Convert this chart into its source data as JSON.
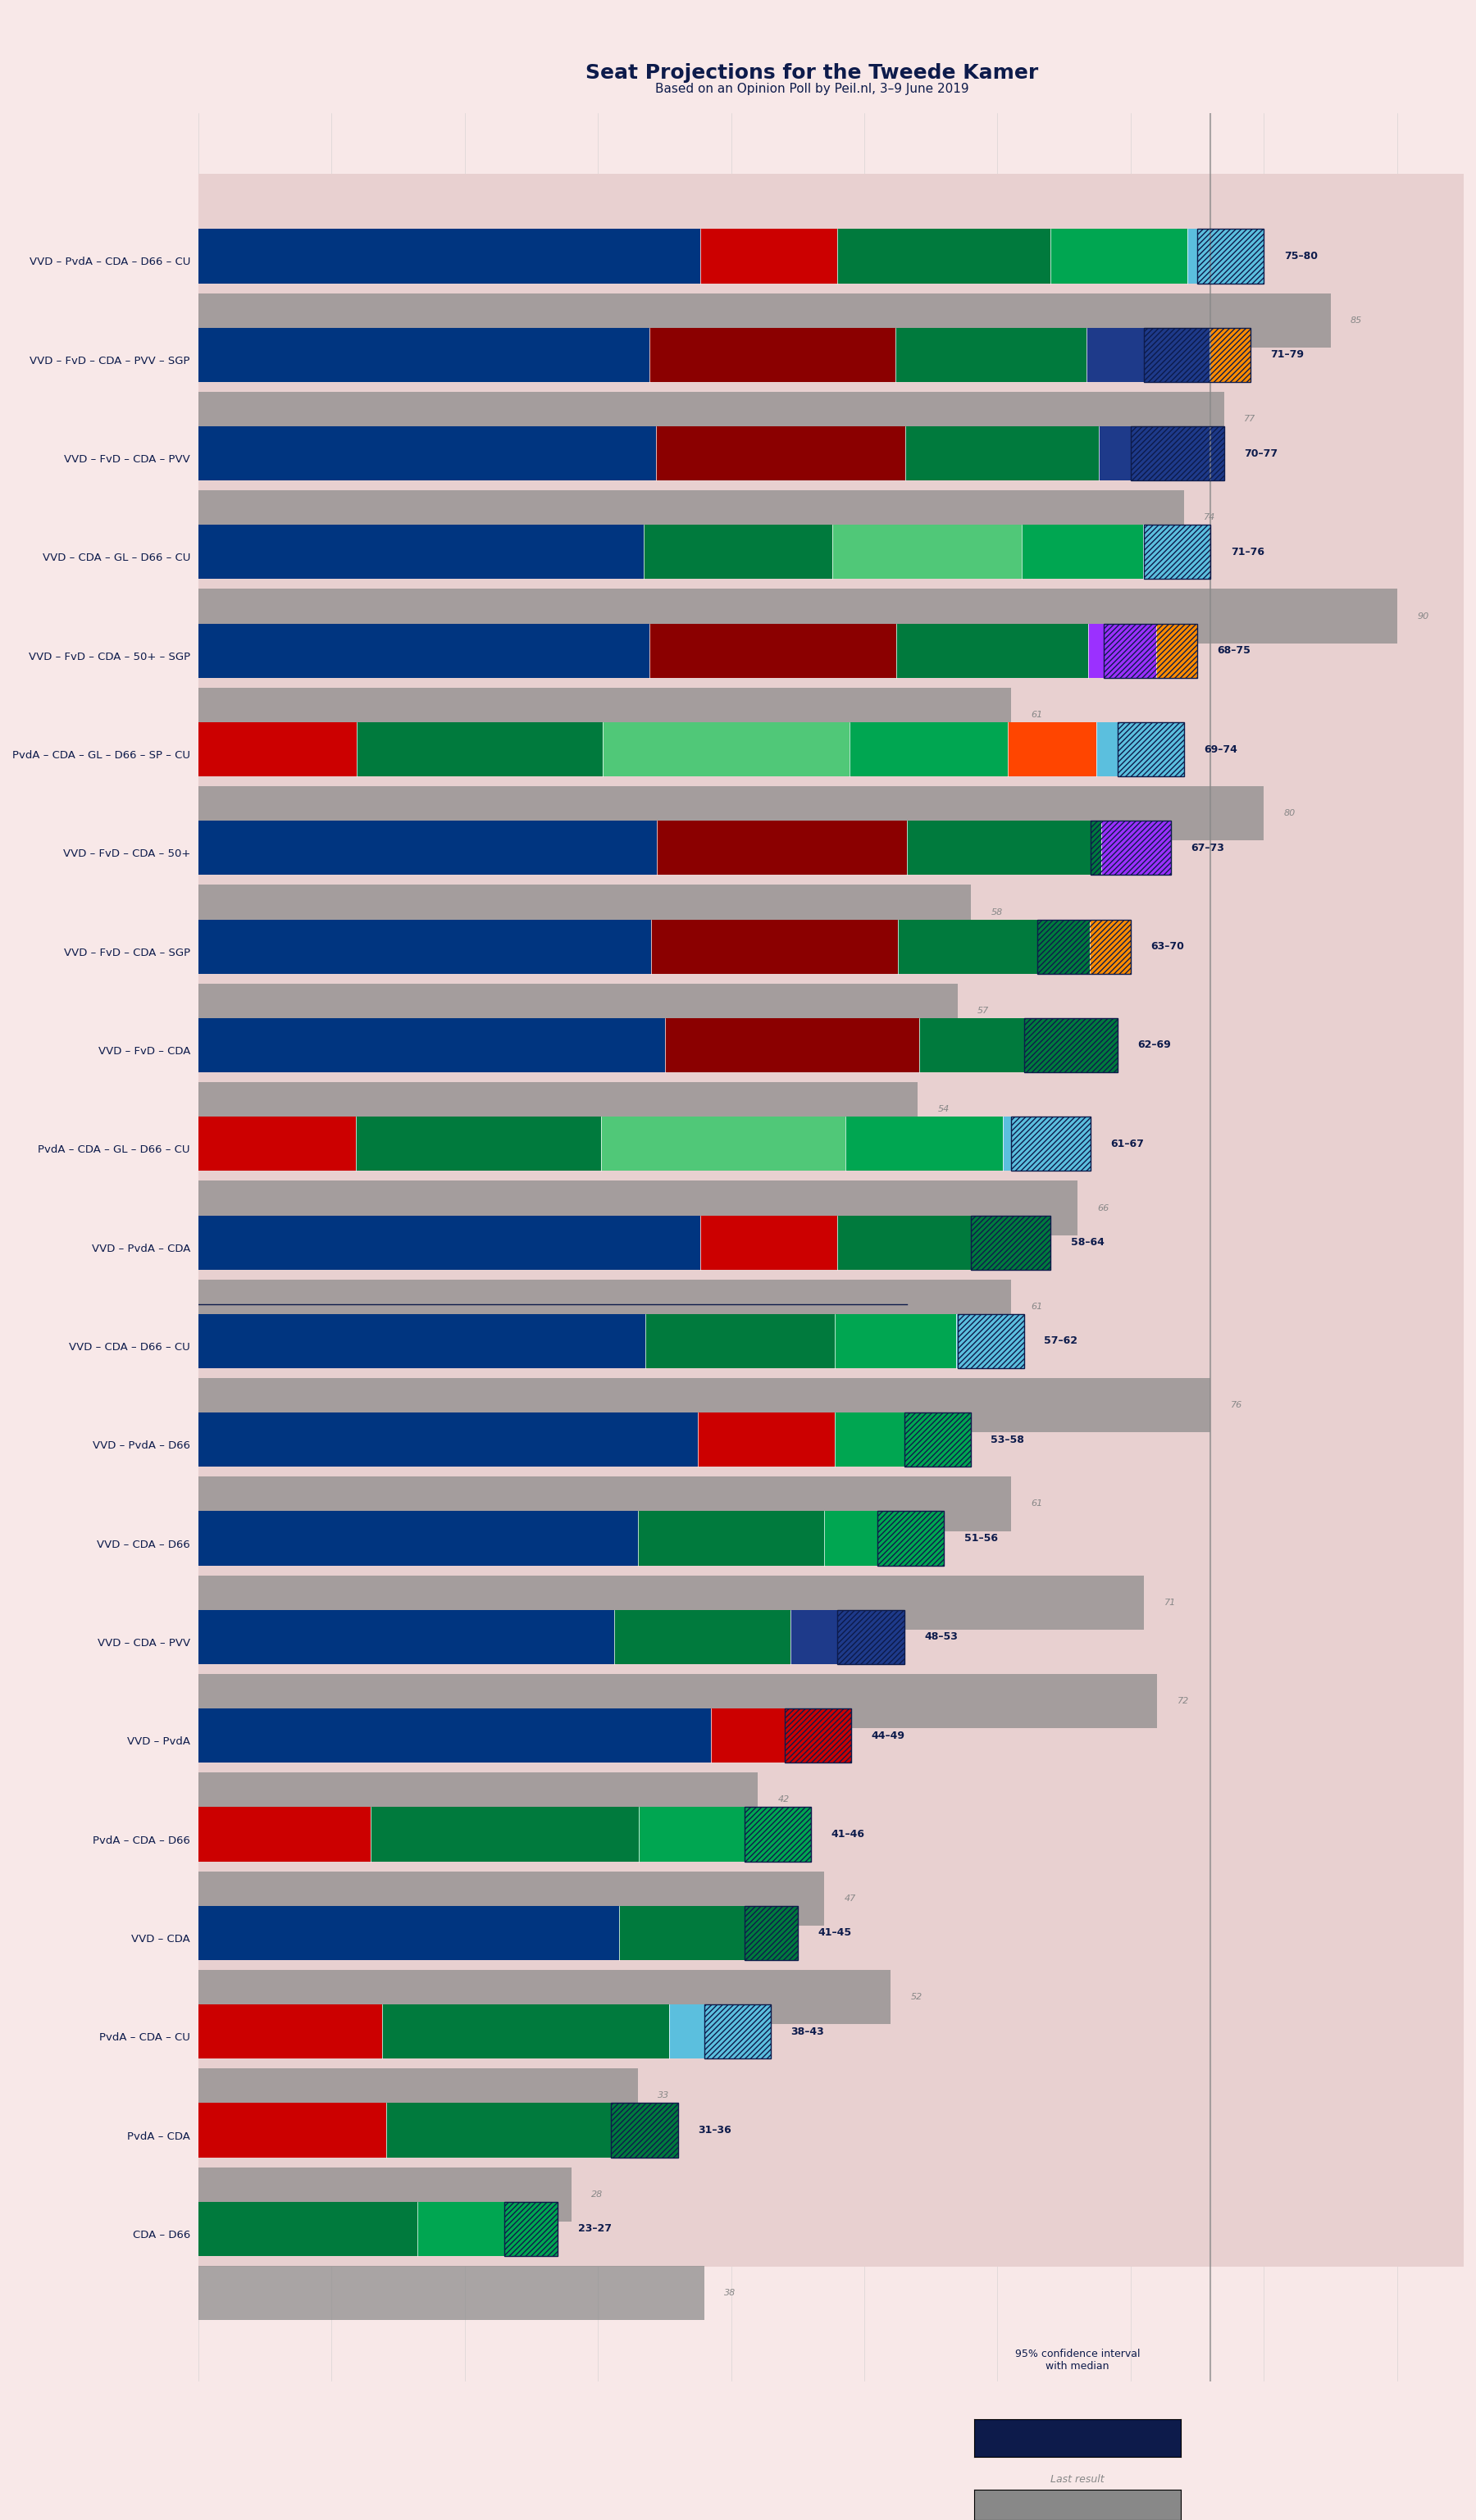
{
  "title": "Seat Projections for the Tweede Kamer",
  "subtitle": "Based on an Opinion Poll by Peil.nl, 3–9 June 2019",
  "background_color": "#f8e8e8",
  "bar_bg_color": "#e8d0d0",
  "title_color": "#0d1b4b",
  "subtitle_color": "#0d1b4b",
  "label_color": "#0d1b4b",
  "coalitions": [
    {
      "name": "VVD – PvdA – CDA – D66 – CU",
      "underline": false,
      "ci_low": 75,
      "ci_high": 80,
      "last": 85,
      "parties": [
        "VVD",
        "PvdA",
        "CDA",
        "D66",
        "CU"
      ],
      "seats": [
        33,
        9,
        14,
        9,
        5
      ]
    },
    {
      "name": "VVD – FvD – CDA – PVV – SGP",
      "underline": false,
      "ci_low": 71,
      "ci_high": 79,
      "last": 77,
      "parties": [
        "VVD",
        "FvD",
        "CDA",
        "PVV",
        "SGP"
      ],
      "seats": [
        33,
        18,
        14,
        9,
        3
      ]
    },
    {
      "name": "VVD – FvD – CDA – PVV",
      "underline": false,
      "ci_low": 70,
      "ci_high": 77,
      "last": 74,
      "parties": [
        "VVD",
        "FvD",
        "CDA",
        "PVV"
      ],
      "seats": [
        33,
        18,
        14,
        9
      ]
    },
    {
      "name": "VVD – CDA – GL – D66 – CU",
      "underline": false,
      "ci_low": 71,
      "ci_high": 76,
      "last": 90,
      "parties": [
        "VVD",
        "CDA",
        "GL",
        "D66",
        "CU"
      ],
      "seats": [
        33,
        14,
        14,
        9,
        5
      ]
    },
    {
      "name": "VVD – FvD – CDA – 50+ – SGP",
      "underline": false,
      "ci_low": 68,
      "ci_high": 75,
      "last": 61,
      "parties": [
        "VVD",
        "FvD",
        "CDA",
        "50+",
        "SGP"
      ],
      "seats": [
        33,
        18,
        14,
        5,
        3
      ]
    },
    {
      "name": "PvdA – CDA – GL – D66 – SP – CU",
      "underline": false,
      "ci_low": 69,
      "ci_high": 74,
      "last": 80,
      "parties": [
        "PvdA",
        "CDA",
        "GL",
        "D66",
        "SP",
        "CU"
      ],
      "seats": [
        9,
        14,
        14,
        9,
        5,
        5
      ]
    },
    {
      "name": "VVD – FvD – CDA – 50+",
      "underline": false,
      "ci_low": 67,
      "ci_high": 73,
      "last": 58,
      "parties": [
        "VVD",
        "FvD",
        "CDA",
        "50+"
      ],
      "seats": [
        33,
        18,
        14,
        5
      ]
    },
    {
      "name": "VVD – FvD – CDA – SGP",
      "underline": false,
      "ci_low": 63,
      "ci_high": 70,
      "last": 57,
      "parties": [
        "VVD",
        "FvD",
        "CDA",
        "SGP"
      ],
      "seats": [
        33,
        18,
        14,
        3
      ]
    },
    {
      "name": "VVD – FvD – CDA",
      "underline": false,
      "ci_low": 62,
      "ci_high": 69,
      "last": 54,
      "parties": [
        "VVD",
        "FvD",
        "CDA"
      ],
      "seats": [
        33,
        18,
        14
      ]
    },
    {
      "name": "PvdA – CDA – GL – D66 – CU",
      "underline": false,
      "ci_low": 61,
      "ci_high": 67,
      "last": 66,
      "parties": [
        "PvdA",
        "CDA",
        "GL",
        "D66",
        "CU"
      ],
      "seats": [
        9,
        14,
        14,
        9,
        5
      ]
    },
    {
      "name": "VVD – PvdA – CDA",
      "underline": false,
      "ci_low": 58,
      "ci_high": 64,
      "last": 61,
      "parties": [
        "VVD",
        "PvdA",
        "CDA"
      ],
      "seats": [
        33,
        9,
        14
      ]
    },
    {
      "name": "VVD – CDA – D66 – CU",
      "underline": true,
      "ci_low": 57,
      "ci_high": 62,
      "last": 76,
      "parties": [
        "VVD",
        "CDA",
        "D66",
        "CU"
      ],
      "seats": [
        33,
        14,
        9,
        5
      ]
    },
    {
      "name": "VVD – PvdA – D66",
      "underline": false,
      "ci_low": 53,
      "ci_high": 58,
      "last": 61,
      "parties": [
        "VVD",
        "PvdA",
        "D66"
      ],
      "seats": [
        33,
        9,
        9
      ]
    },
    {
      "name": "VVD – CDA – D66",
      "underline": false,
      "ci_low": 51,
      "ci_high": 56,
      "last": 71,
      "parties": [
        "VVD",
        "CDA",
        "D66"
      ],
      "seats": [
        33,
        14,
        9
      ]
    },
    {
      "name": "VVD – CDA – PVV",
      "underline": false,
      "ci_low": 48,
      "ci_high": 53,
      "last": 72,
      "parties": [
        "VVD",
        "CDA",
        "PVV"
      ],
      "seats": [
        33,
        14,
        9
      ]
    },
    {
      "name": "VVD – PvdA",
      "underline": false,
      "ci_low": 44,
      "ci_high": 49,
      "last": 42,
      "parties": [
        "VVD",
        "PvdA"
      ],
      "seats": [
        33,
        9
      ]
    },
    {
      "name": "PvdA – CDA – D66",
      "underline": false,
      "ci_low": 41,
      "ci_high": 46,
      "last": 47,
      "parties": [
        "PvdA",
        "CDA",
        "D66"
      ],
      "seats": [
        9,
        14,
        9
      ]
    },
    {
      "name": "VVD – CDA",
      "underline": false,
      "ci_low": 41,
      "ci_high": 45,
      "last": 52,
      "parties": [
        "VVD",
        "CDA"
      ],
      "seats": [
        33,
        14
      ]
    },
    {
      "name": "PvdA – CDA – CU",
      "underline": false,
      "ci_low": 38,
      "ci_high": 43,
      "last": 33,
      "parties": [
        "PvdA",
        "CDA",
        "CU"
      ],
      "seats": [
        9,
        14,
        5
      ]
    },
    {
      "name": "PvdA – CDA",
      "underline": false,
      "ci_low": 31,
      "ci_high": 36,
      "last": 28,
      "parties": [
        "PvdA",
        "CDA"
      ],
      "seats": [
        9,
        14
      ]
    },
    {
      "name": "CDA – D66",
      "underline": false,
      "ci_low": 23,
      "ci_high": 27,
      "last": 38,
      "parties": [
        "CDA",
        "D66"
      ],
      "seats": [
        14,
        9
      ]
    }
  ],
  "party_colors": {
    "VVD": "#003580",
    "PvdA": "#CC0000",
    "CDA": "#007A3D",
    "D66": "#00A651",
    "CU": "#5BBFDE",
    "FvD": "#8B0000",
    "PVV": "#003580",
    "SGP": "#FF8C00",
    "GL": "#50C878",
    "50+": "#800080",
    "SP": "#CC0000",
    "CDA2": "#007A3D"
  },
  "majority": 76,
  "x_max": 95,
  "x_min": 0
}
